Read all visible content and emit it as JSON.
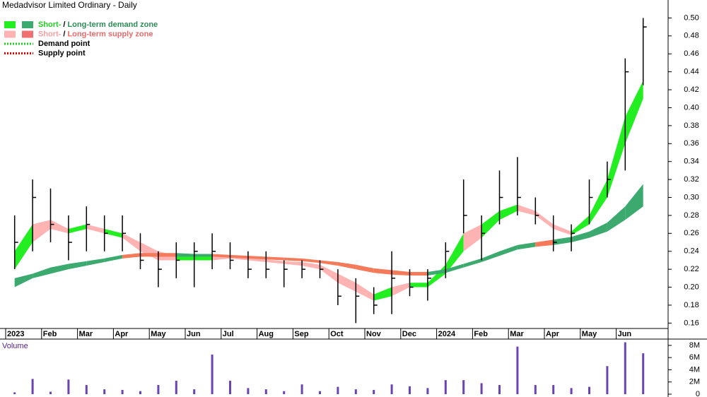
{
  "chart_data": [
    {
      "type": "ohlc",
      "title": "Medadvisor Limited Ordinary - Daily",
      "categories": [
        "2023",
        null,
        "Feb",
        null,
        "Mar",
        null,
        "Apr",
        null,
        "May",
        null,
        "Jun",
        null,
        "Jul",
        null,
        "Aug",
        null,
        "Sep",
        null,
        "Oct",
        null,
        "Nov",
        null,
        "Dec",
        null,
        "2024",
        null,
        "Feb",
        null,
        "Mar",
        null,
        "Apr",
        null,
        "May",
        null,
        "Jun",
        null
      ],
      "high": [
        0.28,
        0.32,
        0.31,
        0.28,
        0.29,
        0.28,
        0.28,
        0.26,
        0.24,
        0.25,
        0.25,
        0.26,
        0.25,
        0.24,
        0.24,
        0.23,
        0.23,
        0.23,
        0.22,
        0.21,
        0.2,
        0.24,
        0.22,
        0.22,
        0.25,
        0.32,
        0.28,
        0.33,
        0.345,
        0.3,
        0.28,
        0.27,
        0.32,
        0.34,
        0.455,
        0.5
      ],
      "low": [
        0.22,
        0.24,
        0.25,
        0.23,
        0.24,
        0.24,
        0.24,
        0.22,
        0.2,
        0.21,
        0.2,
        0.22,
        0.22,
        0.21,
        0.21,
        0.2,
        0.21,
        0.21,
        0.18,
        0.16,
        0.17,
        0.17,
        0.19,
        0.185,
        0.21,
        0.26,
        0.23,
        0.27,
        0.28,
        0.27,
        0.24,
        0.24,
        0.27,
        0.3,
        0.33,
        0.425
      ],
      "close": [
        0.25,
        0.3,
        0.27,
        0.25,
        0.27,
        0.26,
        0.26,
        0.23,
        0.22,
        0.23,
        0.24,
        0.24,
        0.23,
        0.22,
        0.22,
        0.22,
        0.22,
        0.22,
        0.19,
        0.19,
        0.18,
        0.21,
        0.2,
        0.21,
        0.24,
        0.28,
        0.26,
        0.3,
        0.3,
        0.28,
        0.25,
        0.26,
        0.3,
        0.32,
        0.44,
        0.49
      ],
      "bar_color": "#000000",
      "zones": [
        {
          "demand_color": "#22ee22",
          "supply_color": "#ffb3b3",
          "lower": [
            0.22,
            0.25,
            0.265,
            0.26,
            0.265,
            0.26,
            0.255,
            0.24,
            0.23,
            0.23,
            0.23,
            0.23,
            0.232,
            0.23,
            0.228,
            0.226,
            0.224,
            0.22,
            0.205,
            0.195,
            0.185,
            0.19,
            0.2,
            0.2,
            0.215,
            0.24,
            0.255,
            0.275,
            0.285,
            0.28,
            0.265,
            0.258,
            0.27,
            0.3,
            0.36,
            0.41
          ],
          "upper": [
            0.24,
            0.27,
            0.275,
            0.265,
            0.27,
            0.265,
            0.26,
            0.25,
            0.24,
            0.235,
            0.235,
            0.235,
            0.235,
            0.233,
            0.231,
            0.229,
            0.228,
            0.225,
            0.215,
            0.205,
            0.192,
            0.2,
            0.205,
            0.205,
            0.225,
            0.26,
            0.27,
            0.285,
            0.292,
            0.285,
            0.27,
            0.262,
            0.28,
            0.32,
            0.39,
            0.43
          ]
        },
        {
          "demand_color": "#3caa6e",
          "supply_color": "#f47a5a",
          "lower": [
            0.2,
            0.21,
            0.215,
            0.22,
            0.224,
            0.228,
            0.232,
            0.234,
            0.234,
            0.234,
            0.234,
            0.234,
            0.233,
            0.232,
            0.231,
            0.23,
            0.229,
            0.227,
            0.224,
            0.22,
            0.216,
            0.214,
            0.213,
            0.213,
            0.216,
            0.222,
            0.228,
            0.235,
            0.242,
            0.245,
            0.247,
            0.25,
            0.255,
            0.262,
            0.275,
            0.29
          ],
          "upper": [
            0.21,
            0.215,
            0.222,
            0.226,
            0.229,
            0.232,
            0.236,
            0.238,
            0.238,
            0.238,
            0.237,
            0.237,
            0.236,
            0.235,
            0.234,
            0.233,
            0.232,
            0.23,
            0.228,
            0.225,
            0.221,
            0.219,
            0.217,
            0.217,
            0.22,
            0.226,
            0.232,
            0.24,
            0.247,
            0.25,
            0.253,
            0.256,
            0.262,
            0.272,
            0.29,
            0.315
          ]
        }
      ],
      "legend": [
        {
          "short": "Short-",
          "sep": "/",
          "long": "Long-term demand zone",
          "colors": [
            "#22ee22",
            "#3caa6e"
          ],
          "text_colors": [
            "#22cc22",
            "#2e8b57"
          ]
        },
        {
          "short": "Short-",
          "sep": "/",
          "long": "Long-term supply zone",
          "colors": [
            "#ffb3b3",
            "#f07070"
          ],
          "text_colors": [
            "#f4a0a0",
            "#e86a6a"
          ]
        },
        {
          "label": "Demand point",
          "color": "#22cc22"
        },
        {
          "label": "Supply point",
          "color": "#dd0000"
        }
      ],
      "ylim": [
        0.154,
        0.52
      ],
      "yticks": [
        0.16,
        0.18,
        {
          "value": 0.2,
          "label": "0.20"
        },
        0.22,
        0.24,
        0.26,
        0.28,
        {
          "value": 0.3,
          "label": "0.30"
        },
        0.32,
        0.34,
        0.36,
        0.38,
        {
          "value": 0.4,
          "label": "0.40"
        },
        0.42,
        0.44,
        0.46,
        0.48,
        {
          "value": 0.5,
          "label": "0.50"
        }
      ]
    },
    {
      "type": "bar",
      "title": "Volume",
      "color": "#6a44b0",
      "values": [
        300000,
        2500000,
        400000,
        2400000,
        1500000,
        800000,
        700000,
        500000,
        1500000,
        2200000,
        800000,
        6500000,
        2200000,
        1000000,
        800000,
        500000,
        1600000,
        500000,
        1200000,
        800000,
        700000,
        1600000,
        1300000,
        1000000,
        2300000,
        2300000,
        1800000,
        1500000,
        7800000,
        1500000,
        1500000,
        1000000,
        1200000,
        4600000,
        8500000,
        6700000
      ],
      "ylim": [
        0,
        8800000
      ],
      "yticks": [
        {
          "value": 0,
          "label": "0"
        },
        {
          "value": 2000000,
          "label": "2M"
        },
        {
          "value": 4000000,
          "label": "4M"
        },
        {
          "value": 6000000,
          "label": "6M"
        },
        {
          "value": 8000000,
          "label": "8M"
        }
      ]
    }
  ]
}
